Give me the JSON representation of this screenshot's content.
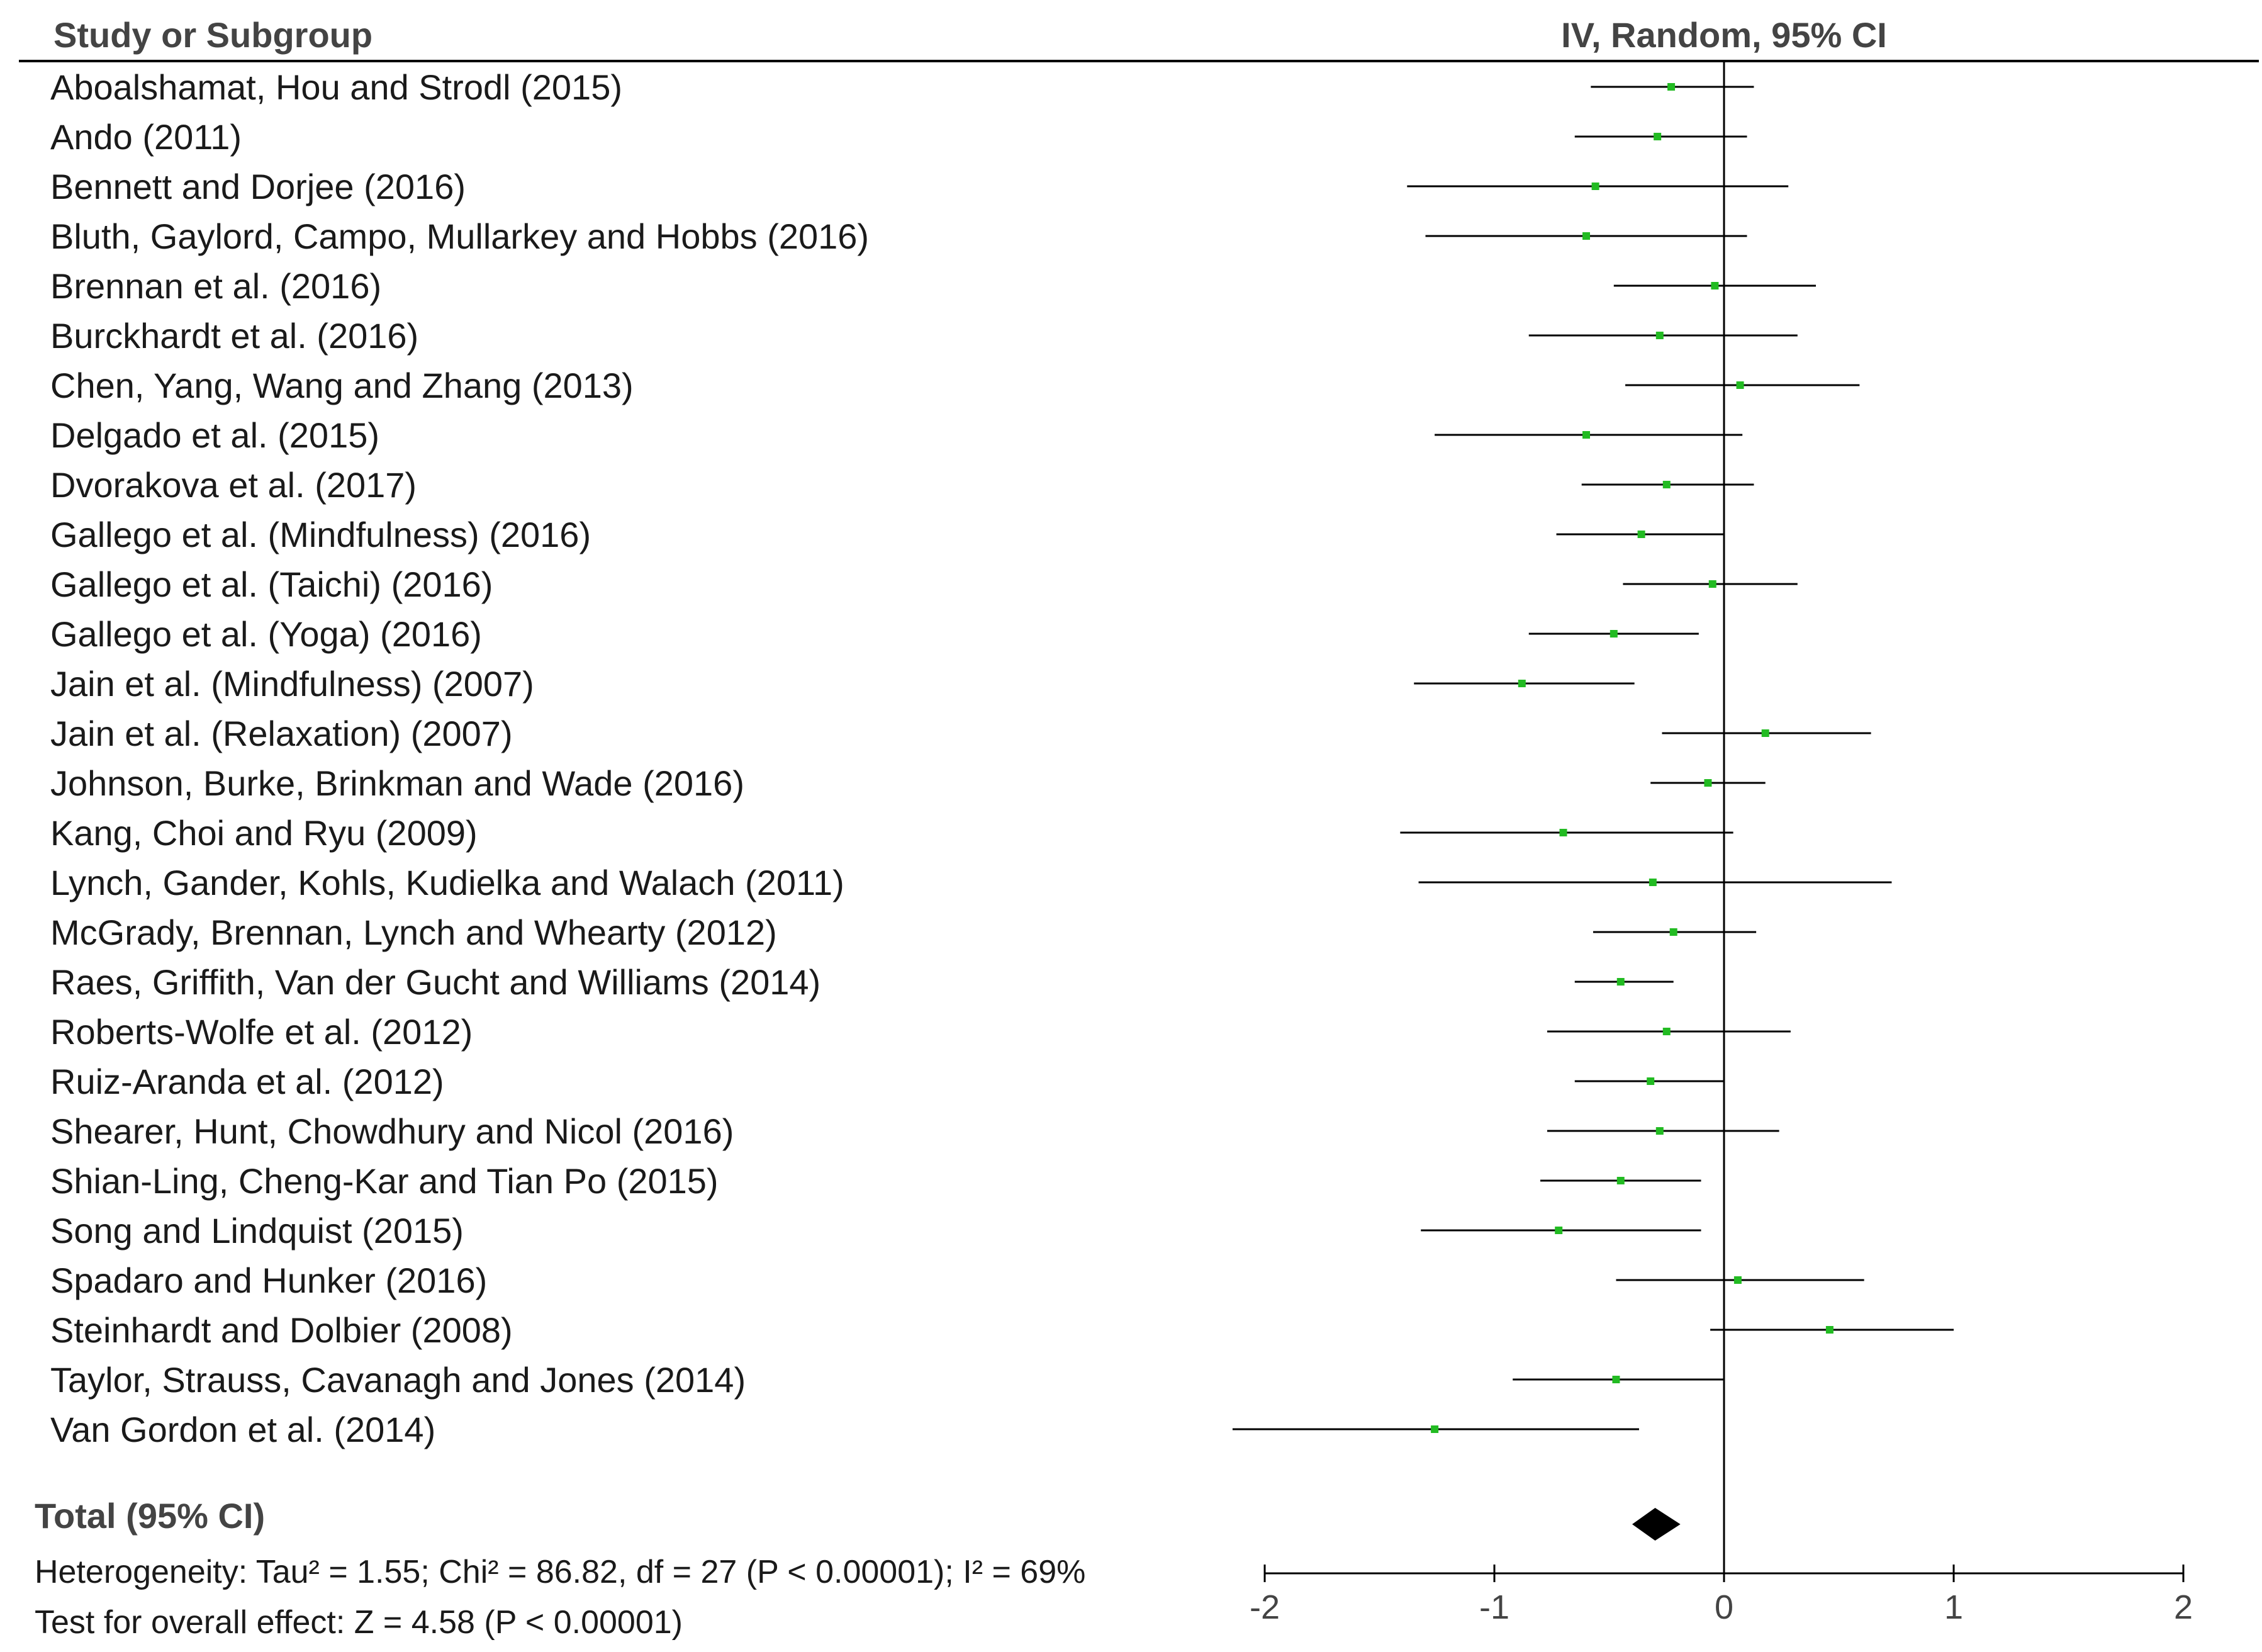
{
  "colors": {
    "background": "#ffffff",
    "text": "#1a1a1a",
    "header_text": "#444444",
    "marker": "#22bb22",
    "line": "#000000"
  },
  "chart_data": {
    "type": "forest",
    "column_headers": {
      "study": "Study or Subgroup",
      "effect": "IV, Random, 95% CI"
    },
    "studies": [
      {
        "name": "Aboalshamat, Hou and Strodl (2015)",
        "estimate": -0.23,
        "lower": -0.58,
        "upper": 0.13
      },
      {
        "name": "Ando (2011)",
        "estimate": -0.29,
        "lower": -0.65,
        "upper": 0.1
      },
      {
        "name": "Bennett and Dorjee (2016)",
        "estimate": -0.56,
        "lower": -1.38,
        "upper": 0.28
      },
      {
        "name": "Bluth, Gaylord, Campo, Mullarkey and Hobbs (2016)",
        "estimate": -0.6,
        "lower": -1.3,
        "upper": 0.1
      },
      {
        "name": "Brennan et al. (2016)",
        "estimate": -0.04,
        "lower": -0.48,
        "upper": 0.4
      },
      {
        "name": "Burckhardt et al. (2016)",
        "estimate": -0.28,
        "lower": -0.85,
        "upper": 0.32
      },
      {
        "name": "Chen, Yang, Wang and Zhang (2013)",
        "estimate": 0.07,
        "lower": -0.43,
        "upper": 0.59
      },
      {
        "name": "Delgado et al. (2015)",
        "estimate": -0.6,
        "lower": -1.26,
        "upper": 0.08
      },
      {
        "name": "Dvorakova et al. (2017)",
        "estimate": -0.25,
        "lower": -0.62,
        "upper": 0.13
      },
      {
        "name": "Gallego et al. (Mindfulness) (2016)",
        "estimate": -0.36,
        "lower": -0.73,
        "upper": 0.0
      },
      {
        "name": "Gallego et al. (Taichi) (2016)",
        "estimate": -0.05,
        "lower": -0.44,
        "upper": 0.32
      },
      {
        "name": "Gallego et al. (Yoga) (2016)",
        "estimate": -0.48,
        "lower": -0.85,
        "upper": -0.11
      },
      {
        "name": "Jain et al. (Mindfulness) (2007)",
        "estimate": -0.88,
        "lower": -1.35,
        "upper": -0.39
      },
      {
        "name": "Jain et al. (Relaxation) (2007)",
        "estimate": 0.18,
        "lower": -0.27,
        "upper": 0.64
      },
      {
        "name": "Johnson, Burke, Brinkman and Wade (2016)",
        "estimate": -0.07,
        "lower": -0.32,
        "upper": 0.18
      },
      {
        "name": "Kang, Choi and Ryu (2009)",
        "estimate": -0.7,
        "lower": -1.41,
        "upper": 0.04
      },
      {
        "name": "Lynch, Gander, Kohls, Kudielka and Walach (2011)",
        "estimate": -0.31,
        "lower": -1.33,
        "upper": 0.73
      },
      {
        "name": "McGrady, Brennan, Lynch and Whearty (2012)",
        "estimate": -0.22,
        "lower": -0.57,
        "upper": 0.14
      },
      {
        "name": "Raes, Griffith, Van der Gucht and Williams (2014)",
        "estimate": -0.45,
        "lower": -0.65,
        "upper": -0.22
      },
      {
        "name": "Roberts-Wolfe et al. (2012)",
        "estimate": -0.25,
        "lower": -0.77,
        "upper": 0.29
      },
      {
        "name": "Ruiz-Aranda et al. (2012)",
        "estimate": -0.32,
        "lower": -0.65,
        "upper": 0.0
      },
      {
        "name": "Shearer, Hunt, Chowdhury and Nicol (2016)",
        "estimate": -0.28,
        "lower": -0.77,
        "upper": 0.24
      },
      {
        "name": "Shian-Ling, Cheng-Kar and Tian Po (2015)",
        "estimate": -0.45,
        "lower": -0.8,
        "upper": -0.1
      },
      {
        "name": "Song and Lindquist (2015)",
        "estimate": -0.72,
        "lower": -1.32,
        "upper": -0.1
      },
      {
        "name": "Spadaro and Hunker (2016)",
        "estimate": 0.06,
        "lower": -0.47,
        "upper": 0.61
      },
      {
        "name": "Steinhardt and Dolbier (2008)",
        "estimate": 0.46,
        "lower": -0.06,
        "upper": 1.0
      },
      {
        "name": "Taylor, Strauss, Cavanagh and Jones (2014)",
        "estimate": -0.47,
        "lower": -0.92,
        "upper": 0.0
      },
      {
        "name": "Van Gordon et al. (2014)",
        "estimate": -1.26,
        "lower": -2.14,
        "upper": -0.37
      }
    ],
    "total": {
      "label": "Total (95% CI)",
      "estimate": -0.3,
      "lower": -0.4,
      "upper": -0.19
    },
    "heterogeneity": "Heterogeneity: Tau² = 1.55; Chi² = 86.82, df = 27 (P < 0.00001); I² = 69%",
    "overall_effect": "Test for overall effect: Z = 4.58 (P < 0.00001)",
    "xlim": [
      -2,
      2
    ],
    "xticks": [
      -2,
      -1,
      0,
      1,
      2
    ],
    "xtick_labels": [
      "-2",
      "-1",
      "0",
      "1",
      "2"
    ]
  }
}
